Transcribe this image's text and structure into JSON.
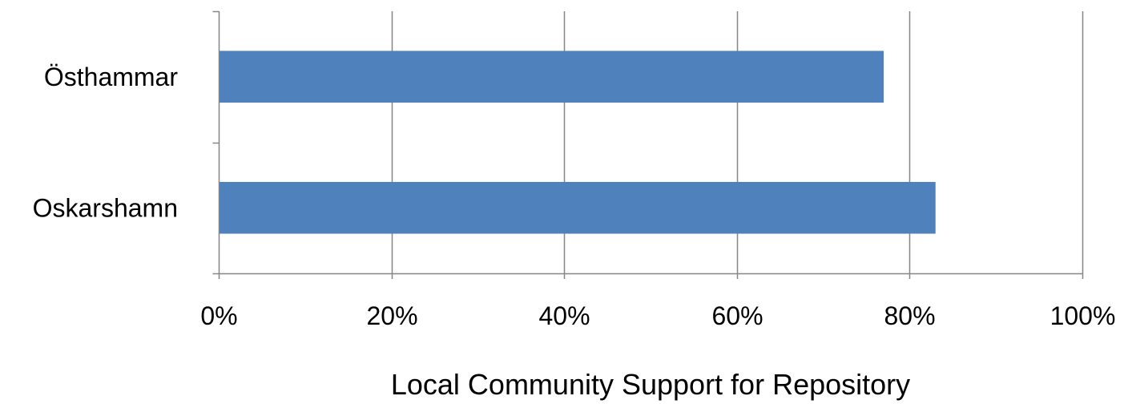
{
  "chart_data": {
    "type": "bar",
    "orientation": "horizontal",
    "categories": [
      "Östhammar",
      "Oskarshamn"
    ],
    "values": [
      0.77,
      0.83
    ],
    "xlabel": "Local Community Support for Repository",
    "ylabel": "",
    "xlim": [
      0,
      1
    ],
    "x_ticks": [
      0,
      0.2,
      0.4,
      0.6,
      0.8,
      1.0
    ],
    "x_tick_labels": [
      "0%",
      "20%",
      "40%",
      "60%",
      "80%",
      "100%"
    ],
    "grid": "vertical gridlines",
    "legend": "none",
    "bar_color": "#4f81bd",
    "grid_color": "#868686"
  }
}
